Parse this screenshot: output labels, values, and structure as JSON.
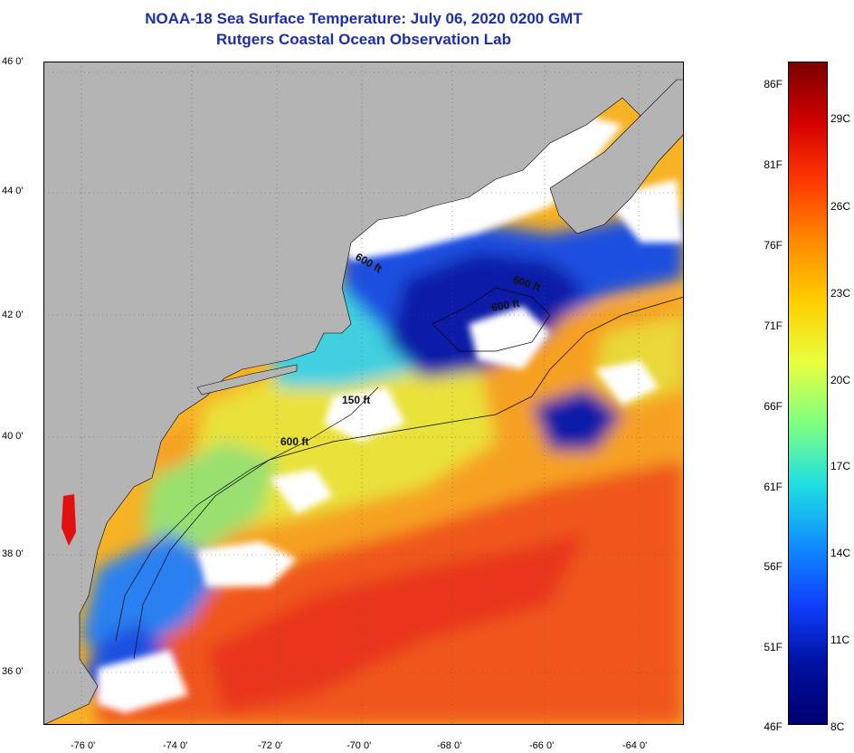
{
  "header": {
    "title": "NOAA-18 Sea Surface Temperature:  July 06, 2020 0200 GMT",
    "subtitle": "Rutgers Coastal Ocean Observation Lab"
  },
  "map": {
    "lat_labels": [
      "46 0'",
      "44 0'",
      "42 0'",
      "40 0'",
      "38 0'",
      "36 0'"
    ],
    "lon_labels": [
      "-76 0'",
      "-74 0'",
      "-72 0'",
      "-70 0'",
      "-68 0'",
      "-66 0'",
      "-64 0'"
    ],
    "contour_labels": [
      "600 ft",
      "600 ft",
      "600 ft",
      "150 ft",
      "600 ft"
    ],
    "colors": {
      "land": "#b4b4b4",
      "cloud": "#ffffff",
      "cold": "#0a1ea0",
      "cool": "#2a7ff0",
      "mid": "#4fe0d8",
      "mild": "#f2e23a",
      "warm": "#f7a21d",
      "hot": "#f04a12"
    }
  },
  "colorbar": {
    "fahrenheit_labels": [
      "86F",
      "81F",
      "76F",
      "71F",
      "66F",
      "61F",
      "56F",
      "51F",
      "46F"
    ],
    "celsius_labels": [
      "29C",
      "26C",
      "23C",
      "20C",
      "17C",
      "14C",
      "11C",
      "8C"
    ],
    "gradient": [
      "#7a0000",
      "#d40000",
      "#ff3a00",
      "#ff8c00",
      "#ffd000",
      "#e8ff40",
      "#80ff80",
      "#20e0e0",
      "#1090ff",
      "#1040ff",
      "#0010a0",
      "#000070"
    ]
  }
}
